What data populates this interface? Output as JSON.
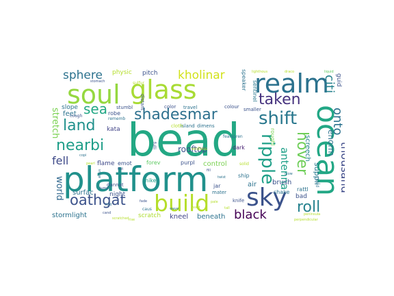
{
  "words": [
    {
      "text": "bead",
      "color": "#23a884"
    },
    {
      "text": "platform",
      "color": "#21918c"
    },
    {
      "text": "ocean",
      "color": "#22a785"
    },
    {
      "text": "soul",
      "color": "#95d840"
    },
    {
      "text": "glass",
      "color": "#a8db34"
    },
    {
      "text": "realm",
      "color": "#2c728e"
    },
    {
      "text": "build",
      "color": "#b5de2b"
    },
    {
      "text": "sky",
      "color": "#3b528b"
    },
    {
      "text": "shadesmar",
      "color": "#2d708e"
    },
    {
      "text": "ripple",
      "color": "#1fa088"
    },
    {
      "text": "shift",
      "color": "#2a788e"
    },
    {
      "text": "taken",
      "color": "#46327e"
    },
    {
      "text": "hover",
      "color": "#6ece58"
    },
    {
      "text": "land",
      "color": "#21918c"
    },
    {
      "text": "nearbi",
      "color": "#1f9e89"
    },
    {
      "text": "oathgat",
      "color": "#3b528b"
    },
    {
      "text": "roll",
      "color": "#26828e"
    },
    {
      "text": "sea",
      "color": "#22a785"
    },
    {
      "text": "sphere",
      "color": "#2c728e"
    },
    {
      "text": "kholinar",
      "color": "#d2e21b"
    },
    {
      "text": "citi",
      "color": "#26828e"
    },
    {
      "text": "onto",
      "color": "#2c728e"
    },
    {
      "text": "antenna",
      "color": "#1fa088"
    },
    {
      "text": "thousand",
      "color": "#3e4a89"
    },
    {
      "text": "enorm",
      "color": "#2c728e"
    },
    {
      "text": "black",
      "color": "#440154"
    },
    {
      "text": "stretch",
      "color": "#7ad151"
    },
    {
      "text": "fell",
      "color": "#3e4a89"
    },
    {
      "text": "world",
      "color": "#31688e"
    },
    {
      "text": "rooftop",
      "color": "#3b528b"
    },
    {
      "text": "suppli",
      "color": "#2a788e"
    },
    {
      "text": "screech",
      "color": "#26828e"
    },
    {
      "text": "surfac",
      "color": "#2c728e"
    },
    {
      "text": "stormlight",
      "color": "#2c728e"
    },
    {
      "text": "scratch",
      "color": "#addc30"
    },
    {
      "text": "kneel",
      "color": "#414487"
    },
    {
      "text": "beneath",
      "color": "#2c728e"
    },
    {
      "text": "brush",
      "color": "#3b528b"
    },
    {
      "text": "control",
      "color": "#7ad151"
    },
    {
      "text": "feet",
      "color": "#2c728e"
    },
    {
      "text": "slope",
      "color": "#2c728e"
    },
    {
      "text": "physic",
      "color": "#b5de2b"
    },
    {
      "text": "pitch",
      "color": "#3b528b"
    },
    {
      "text": "flame",
      "color": "#3e4a89"
    },
    {
      "text": "night",
      "color": "#3b528b"
    },
    {
      "text": "air",
      "color": "#2c728e"
    },
    {
      "text": "bad",
      "color": "#3b528b"
    },
    {
      "text": "rattl",
      "color": "#2c728e"
    },
    {
      "text": "guid",
      "color": "#3b528b"
    },
    {
      "text": "roughl",
      "color": "#7ad151"
    },
    {
      "text": "sentinel",
      "color": "#2a788e"
    },
    {
      "text": "speaker",
      "color": "#2c728e"
    },
    {
      "text": "kata",
      "color": "#414487"
    },
    {
      "text": "robe",
      "color": "#3b528b"
    },
    {
      "text": "emot",
      "color": "#3b528b"
    },
    {
      "text": "forev",
      "color": "#5ec962"
    },
    {
      "text": "purpl",
      "color": "#3b528b"
    },
    {
      "text": "jar",
      "color": "#3b528b"
    },
    {
      "text": "ship",
      "color": "#2c728e"
    },
    {
      "text": "shake",
      "color": "#2c728e"
    },
    {
      "text": "hike",
      "color": "#1f9e89"
    },
    {
      "text": "mater",
      "color": "#2c728e"
    },
    {
      "text": "knife",
      "color": "#3b528b"
    },
    {
      "text": "dark",
      "color": "#482173"
    },
    {
      "text": "colour",
      "color": "#3b528b"
    },
    {
      "text": "island",
      "color": "#2c728e"
    },
    {
      "text": "color",
      "color": "#3b528b"
    },
    {
      "text": "travel",
      "color": "#2c728e"
    },
    {
      "text": "distant",
      "color": "#3b528b"
    },
    {
      "text": "cloth",
      "color": "#b5de2b"
    },
    {
      "text": "dimens",
      "color": "#2c728e"
    },
    {
      "text": "stumbl",
      "color": "#3b528b"
    },
    {
      "text": "rememb",
      "color": "#2c728e"
    },
    {
      "text": "cough",
      "color": "#3b528b"
    },
    {
      "text": "lighthous",
      "color": "#b5de2b"
    },
    {
      "text": "draco",
      "color": "#b5de2b"
    },
    {
      "text": "liquid",
      "color": "#5ec962"
    },
    {
      "text": "smaller",
      "color": "#3b528b"
    },
    {
      "text": "solid",
      "color": "#b5de2b"
    },
    {
      "text": "cloud",
      "color": "#2c728e"
    },
    {
      "text": "fearspren",
      "color": "#2c728e"
    },
    {
      "text": "peninsula",
      "color": "#b5de2b"
    },
    {
      "text": "perpendicular",
      "color": "#b5de2b"
    },
    {
      "text": "dannat",
      "color": "#3b528b"
    },
    {
      "text": "endless",
      "color": "#b5de2b"
    },
    {
      "text": "stomach",
      "color": "#3b528b"
    },
    {
      "text": "sulfur",
      "color": "#b5de2b"
    },
    {
      "text": "snow",
      "color": "#2c728e"
    },
    {
      "text": "jump",
      "color": "#3b528b"
    },
    {
      "text": "caus",
      "color": "#2c728e"
    },
    {
      "text": "fade",
      "color": "#3b528b"
    },
    {
      "text": "fold",
      "color": "#2c728e"
    },
    {
      "text": "cand",
      "color": "#3b528b"
    },
    {
      "text": "scratched",
      "color": "#b5de2b"
    },
    {
      "text": "fill",
      "color": "#3b528b"
    },
    {
      "text": "twist",
      "color": "#2c728e"
    },
    {
      "text": "flat",
      "color": "#3b528b"
    },
    {
      "text": "fulli",
      "color": "#3b528b"
    },
    {
      "text": "copi",
      "color": "#2c728e"
    },
    {
      "text": "pearl",
      "color": "#b5de2b"
    },
    {
      "text": "glow",
      "color": "#2c728e"
    },
    {
      "text": "wave",
      "color": "#2c728e"
    },
    {
      "text": "tall",
      "color": "#b5de2b"
    },
    {
      "text": "vast",
      "color": "#b5de2b"
    },
    {
      "text": "pale",
      "color": "#b5de2b"
    },
    {
      "text": "rise",
      "color": "#b5de2b"
    }
  ]
}
